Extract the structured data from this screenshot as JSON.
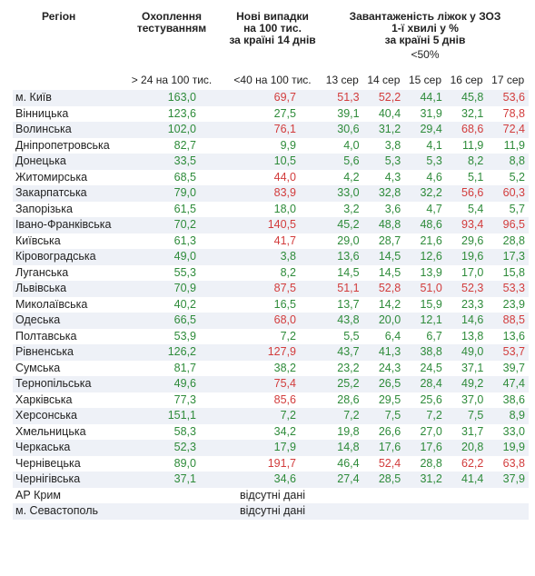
{
  "headers": {
    "region": "Регіон",
    "testing": [
      "Охоплення",
      "тестуванням"
    ],
    "cases": [
      "Нові випадки",
      "на 100 тис.",
      "за країні 14 днів"
    ],
    "beds": [
      "Завантаженість ліжок у ЗОЗ",
      "1-ї хвилі у %",
      "за країні 5 днів"
    ],
    "beds_threshold": "<50%",
    "testing_threshold": "> 24 на 100 тис.",
    "cases_threshold": "<40 на 100 тис.",
    "dates": [
      "13 сер",
      "14 сер",
      "15 сер",
      "16 сер",
      "17 сер"
    ]
  },
  "colors": {
    "good": "#2e8b3a",
    "bad": "#d23c3c",
    "stripe": "#eef1f7"
  },
  "missing_label": "відсутні дані",
  "rows": [
    {
      "region": "м. Київ",
      "testing": "163,0",
      "cases": "69,7",
      "days": [
        "51,3",
        "52,2",
        "44,1",
        "45,8",
        "53,6"
      ]
    },
    {
      "region": "Вінницька",
      "testing": "123,6",
      "cases": "27,5",
      "days": [
        "39,1",
        "40,4",
        "31,9",
        "32,1",
        "78,8"
      ]
    },
    {
      "region": "Волинська",
      "testing": "102,0",
      "cases": "76,1",
      "days": [
        "30,6",
        "31,2",
        "29,4",
        "68,6",
        "72,4"
      ]
    },
    {
      "region": "Дніпропетровська",
      "testing": "82,7",
      "cases": "9,9",
      "days": [
        "4,0",
        "3,8",
        "4,1",
        "11,9",
        "11,9"
      ]
    },
    {
      "region": "Донецька",
      "testing": "33,5",
      "cases": "10,5",
      "days": [
        "5,6",
        "5,3",
        "5,3",
        "8,2",
        "8,8"
      ]
    },
    {
      "region": "Житомирська",
      "testing": "68,5",
      "cases": "44,0",
      "days": [
        "4,2",
        "4,3",
        "4,6",
        "5,1",
        "5,2"
      ]
    },
    {
      "region": "Закарпатська",
      "testing": "79,0",
      "cases": "83,9",
      "days": [
        "33,0",
        "32,8",
        "32,2",
        "56,6",
        "60,3"
      ]
    },
    {
      "region": "Запорізька",
      "testing": "61,5",
      "cases": "18,0",
      "days": [
        "3,2",
        "3,6",
        "4,7",
        "5,4",
        "5,7"
      ]
    },
    {
      "region": "Івано-Франківська",
      "testing": "70,2",
      "cases": "140,5",
      "days": [
        "45,2",
        "48,8",
        "48,6",
        "93,4",
        "96,5"
      ]
    },
    {
      "region": "Київська",
      "testing": "61,3",
      "cases": "41,7",
      "days": [
        "29,0",
        "28,7",
        "21,6",
        "29,6",
        "28,8"
      ]
    },
    {
      "region": "Кіровоградська",
      "testing": "49,0",
      "cases": "3,8",
      "days": [
        "13,6",
        "14,5",
        "12,6",
        "19,6",
        "17,3"
      ]
    },
    {
      "region": "Луганська",
      "testing": "55,3",
      "cases": "8,2",
      "days": [
        "14,5",
        "14,5",
        "13,9",
        "17,0",
        "15,8"
      ]
    },
    {
      "region": "Львівська",
      "testing": "70,9",
      "cases": "87,5",
      "days": [
        "51,1",
        "52,8",
        "51,0",
        "52,3",
        "53,3"
      ]
    },
    {
      "region": "Миколаївська",
      "testing": "40,2",
      "cases": "16,5",
      "days": [
        "13,7",
        "14,2",
        "15,9",
        "23,3",
        "23,9"
      ]
    },
    {
      "region": "Одеська",
      "testing": "66,5",
      "cases": "68,0",
      "days": [
        "43,8",
        "20,0",
        "12,1",
        "14,6",
        "88,5"
      ]
    },
    {
      "region": "Полтавська",
      "testing": "53,9",
      "cases": "7,2",
      "days": [
        "5,5",
        "6,4",
        "6,7",
        "13,8",
        "13,6"
      ]
    },
    {
      "region": "Рівненська",
      "testing": "126,2",
      "cases": "127,9",
      "days": [
        "43,7",
        "41,3",
        "38,8",
        "49,0",
        "53,7"
      ]
    },
    {
      "region": "Сумська",
      "testing": "81,7",
      "cases": "38,2",
      "days": [
        "23,2",
        "24,3",
        "24,5",
        "37,1",
        "39,7"
      ]
    },
    {
      "region": "Тернопільська",
      "testing": "49,6",
      "cases": "75,4",
      "days": [
        "25,2",
        "26,5",
        "28,4",
        "49,2",
        "47,4"
      ]
    },
    {
      "region": "Харківська",
      "testing": "77,3",
      "cases": "85,6",
      "days": [
        "28,6",
        "29,5",
        "25,6",
        "37,0",
        "38,6"
      ]
    },
    {
      "region": "Херсонська",
      "testing": "151,1",
      "cases": "7,2",
      "days": [
        "7,2",
        "7,5",
        "7,2",
        "7,5",
        "8,9"
      ]
    },
    {
      "region": "Хмельницька",
      "testing": "58,3",
      "cases": "34,2",
      "days": [
        "19,8",
        "26,6",
        "27,0",
        "31,7",
        "33,0"
      ]
    },
    {
      "region": "Черкаська",
      "testing": "52,3",
      "cases": "17,9",
      "days": [
        "14,8",
        "17,6",
        "17,6",
        "20,8",
        "19,9"
      ]
    },
    {
      "region": "Чернівецька",
      "testing": "89,0",
      "cases": "191,7",
      "days": [
        "46,4",
        "52,4",
        "28,8",
        "62,2",
        "63,8"
      ]
    },
    {
      "region": "Чернігівська",
      "testing": "37,1",
      "cases": "34,6",
      "days": [
        "27,4",
        "28,5",
        "31,2",
        "41,4",
        "37,9"
      ]
    },
    {
      "region": "АР Крим",
      "missing": true
    },
    {
      "region": "м. Севастополь",
      "missing": true
    }
  ]
}
